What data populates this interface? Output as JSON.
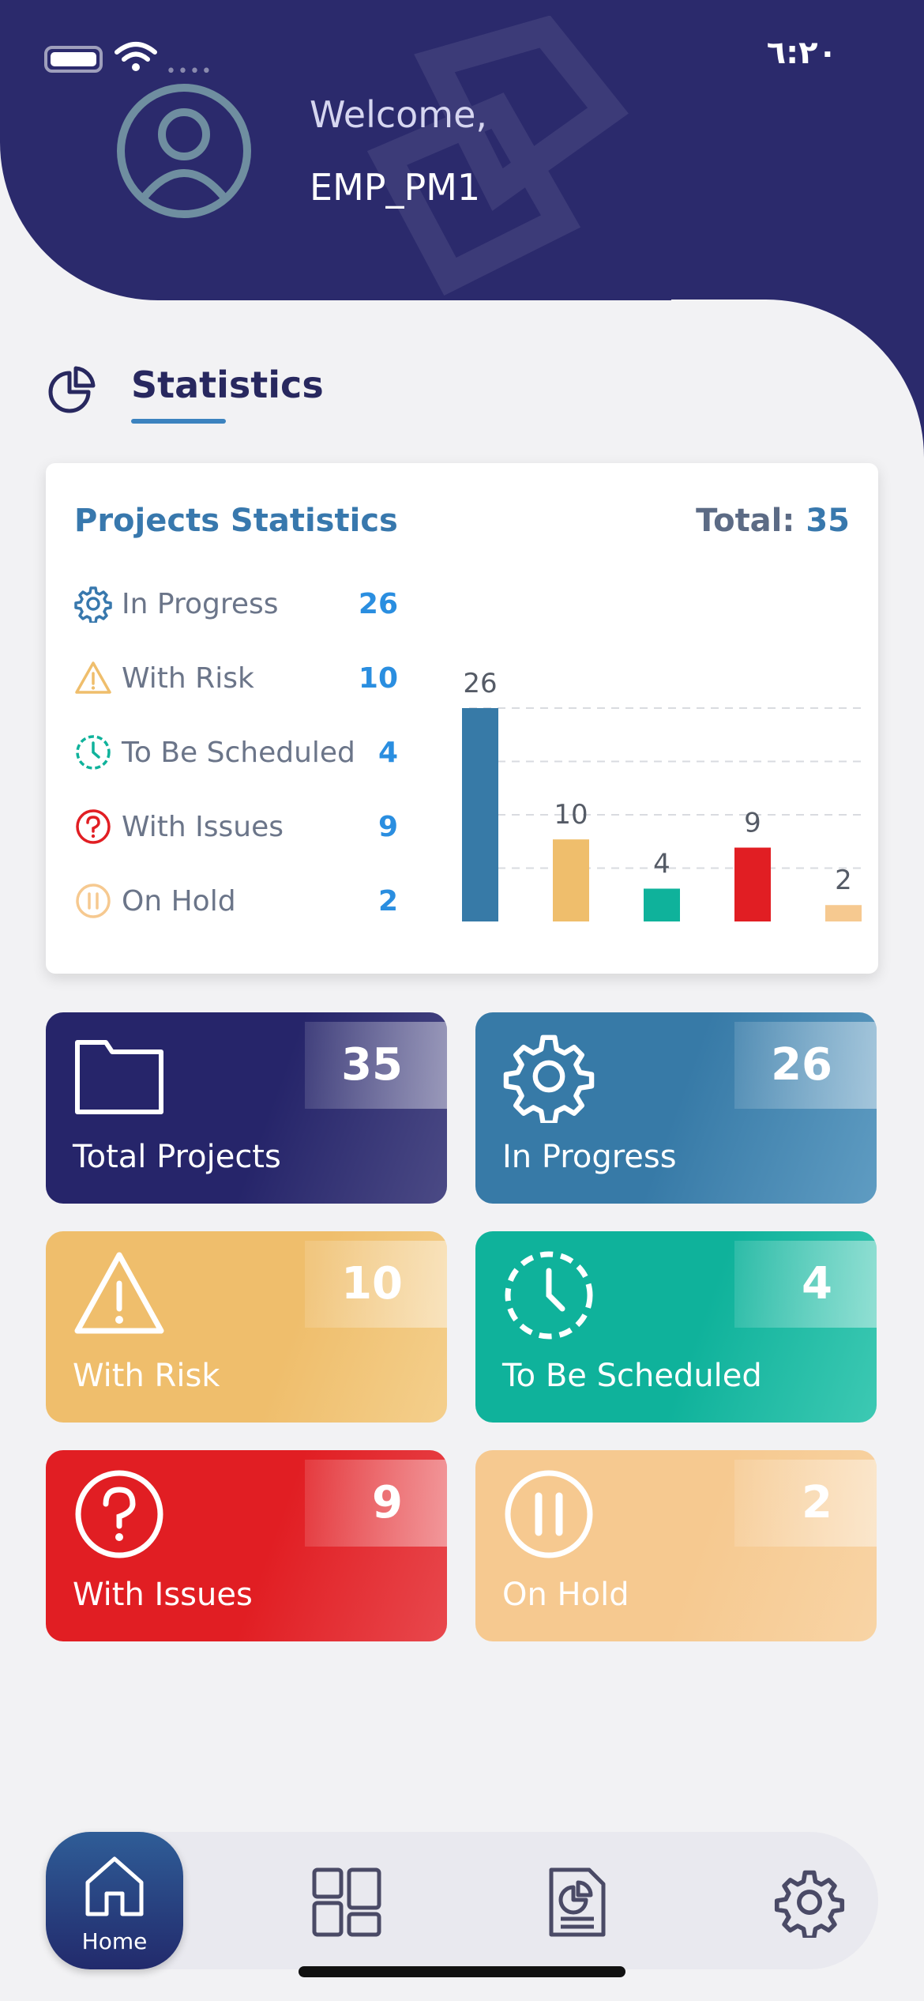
{
  "status_bar": {
    "time": "٦:٢٠"
  },
  "header": {
    "welcome": "Welcome,",
    "username": "EMP_PM1"
  },
  "section": {
    "title": "Statistics"
  },
  "card": {
    "title": "Projects Statistics",
    "total_label": "Total:",
    "total_value": "35",
    "legend": [
      {
        "label": "In Progress",
        "value": "26",
        "icon": "gear-icon"
      },
      {
        "label": "With Risk",
        "value": "10",
        "icon": "warning-icon"
      },
      {
        "label": "To Be Scheduled",
        "value": "4",
        "icon": "clock-icon"
      },
      {
        "label": "With Issues",
        "value": "9",
        "icon": "question-icon"
      },
      {
        "label": "On Hold",
        "value": "2",
        "icon": "pause-icon"
      }
    ]
  },
  "chart_data": {
    "type": "bar",
    "categories": [
      "In Progress",
      "With Risk",
      "To Be Scheduled",
      "With Issues",
      "On Hold"
    ],
    "values": [
      26,
      10,
      4,
      9,
      2
    ],
    "colors": [
      "#377aa7",
      "#efbe6c",
      "#0fb29b",
      "#e11e23",
      "#f6c990"
    ],
    "ylim": [
      0,
      26
    ],
    "title": "",
    "xlabel": "",
    "ylabel": "",
    "grid": true
  },
  "tiles": [
    {
      "label": "Total Projects",
      "value": "35",
      "icon": "folder-icon"
    },
    {
      "label": "In Progress",
      "value": "26",
      "icon": "gear-icon"
    },
    {
      "label": "With Risk",
      "value": "10",
      "icon": "warning-icon"
    },
    {
      "label": "To Be Scheduled",
      "value": "4",
      "icon": "clock-icon"
    },
    {
      "label": "With Issues",
      "value": "9",
      "icon": "question-icon"
    },
    {
      "label": "On Hold",
      "value": "2",
      "icon": "pause-icon"
    }
  ],
  "nav": {
    "home_label": "Home"
  },
  "colors": {
    "header": "#2b2a6c",
    "accent": "#3878ad",
    "value": "#2a8ee0"
  }
}
